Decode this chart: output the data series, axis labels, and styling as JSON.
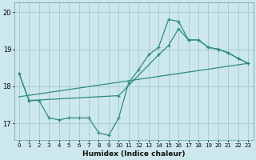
{
  "xlabel": "Humidex (Indice chaleur)",
  "bg_color": "#cce8ec",
  "grid_color": "#aacdd4",
  "line_color": "#2e8b7a",
  "xlim": [
    -0.5,
    23.5
  ],
  "ylim": [
    16.55,
    20.25
  ],
  "yticks": [
    17,
    18,
    19,
    20
  ],
  "xticks": [
    0,
    1,
    2,
    3,
    4,
    5,
    6,
    7,
    8,
    9,
    10,
    11,
    12,
    13,
    14,
    15,
    16,
    17,
    18,
    19,
    20,
    21,
    22,
    23
  ],
  "curve1_x": [
    0,
    1,
    2,
    3,
    4,
    5,
    6,
    7,
    8,
    9,
    10,
    11,
    12,
    13,
    14,
    15,
    16,
    17,
    18,
    19,
    20,
    21,
    22,
    23
  ],
  "curve1_y": [
    18.35,
    17.62,
    17.62,
    17.15,
    17.1,
    17.15,
    17.15,
    17.15,
    16.75,
    16.68,
    17.15,
    18.1,
    18.45,
    18.85,
    19.05,
    19.8,
    19.75,
    19.25,
    19.25,
    19.05,
    19.0,
    18.9,
    18.75,
    18.62
  ],
  "curve2_x": [
    0,
    1,
    10,
    14,
    15,
    16,
    17,
    18,
    19,
    20,
    21,
    22,
    23
  ],
  "curve2_y": [
    18.35,
    17.62,
    17.75,
    18.85,
    19.1,
    19.55,
    19.25,
    19.25,
    19.05,
    19.0,
    18.9,
    18.75,
    18.62
  ],
  "curve3_x": [
    0,
    23
  ],
  "curve3_y": [
    17.72,
    18.62
  ]
}
